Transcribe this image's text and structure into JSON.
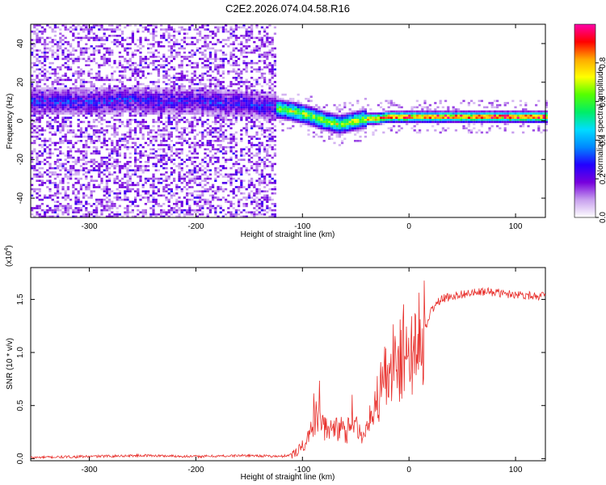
{
  "title": "C2E2.2026.074.04.58.R16",
  "chart_data": [
    {
      "type": "heatmap",
      "xlabel": "Height of straight line (km)",
      "ylabel": "Frequency (Hz)",
      "xlim": [
        -355,
        128
      ],
      "ylim": [
        -50,
        50
      ],
      "xticks": [
        -300,
        -200,
        -100,
        0,
        100
      ],
      "yticks": [
        -40,
        -20,
        0,
        20,
        40
      ],
      "ridge": {
        "x": [
          -355,
          -300,
          -260,
          -240,
          -200,
          -160,
          -130,
          -110,
          -95,
          -80,
          -65,
          -50,
          -40,
          -30,
          -20,
          -10,
          0,
          20,
          50,
          80,
          128
        ],
        "freq": [
          10,
          10,
          11,
          10,
          10,
          9,
          7,
          5,
          3,
          0,
          -2,
          0,
          1,
          1,
          2,
          2,
          2,
          2,
          2,
          2,
          2
        ]
      },
      "colorbar": {
        "label": "Normalized spectral amplitude",
        "range": [
          0.0,
          1.0
        ],
        "ticks": [
          "0.0",
          "0.2",
          "0.4",
          "0.6",
          "0.8"
        ],
        "tick_values": [
          0.0,
          0.2,
          0.4,
          0.6,
          0.8
        ],
        "colors": [
          "#ffffff",
          "#c8a0ee",
          "#7700dd",
          "#2200ff",
          "#0088ff",
          "#00ddff",
          "#00ee66",
          "#55ff00",
          "#ffff00",
          "#ffaa00",
          "#ff0000",
          "#ff00aa"
        ]
      }
    },
    {
      "type": "line",
      "xlabel": "Height of straight line (km)",
      "ylabel": "SNR (10 * v/v)",
      "yscale_label": "(x10",
      "yscale_exp": "4",
      "xlim": [
        -355,
        128
      ],
      "ylim": [
        -0.02,
        1.8
      ],
      "xticks": [
        -300,
        -200,
        -100,
        0,
        100
      ],
      "yticks": [
        0.0,
        0.5,
        1.0,
        1.5
      ],
      "ytick_labels": [
        "0.0",
        "0.5",
        "1.0",
        "1.5"
      ],
      "color": "#e8302c",
      "series": {
        "name": "SNR",
        "x": [
          -355,
          -300,
          -250,
          -200,
          -150,
          -120,
          -110,
          -105,
          -100,
          -95,
          -90,
          -85,
          -82,
          -80,
          -75,
          -70,
          -65,
          -60,
          -55,
          -50,
          -45,
          -40,
          -35,
          -30,
          -28,
          -25,
          -22,
          -20,
          -17,
          -15,
          -12,
          -10,
          -8,
          -5,
          -3,
          0,
          3,
          5,
          8,
          10,
          12,
          15,
          18,
          20,
          25,
          30,
          40,
          50,
          60,
          70,
          80,
          90,
          100,
          110,
          128
        ],
        "y": [
          0.01,
          0.02,
          0.03,
          0.02,
          0.03,
          0.02,
          0.04,
          0.08,
          0.12,
          0.18,
          0.3,
          0.45,
          0.42,
          0.3,
          0.25,
          0.28,
          0.3,
          0.25,
          0.28,
          0.3,
          0.22,
          0.25,
          0.32,
          0.55,
          0.6,
          0.75,
          0.85,
          0.7,
          0.8,
          0.95,
          0.85,
          1.0,
          0.95,
          1.05,
          1.1,
          0.9,
          1.0,
          0.95,
          1.05,
          1.1,
          1.15,
          1.2,
          1.3,
          1.38,
          1.45,
          1.5,
          1.53,
          1.55,
          1.56,
          1.57,
          1.57,
          1.55,
          1.55,
          1.54,
          1.53
        ]
      }
    }
  ]
}
